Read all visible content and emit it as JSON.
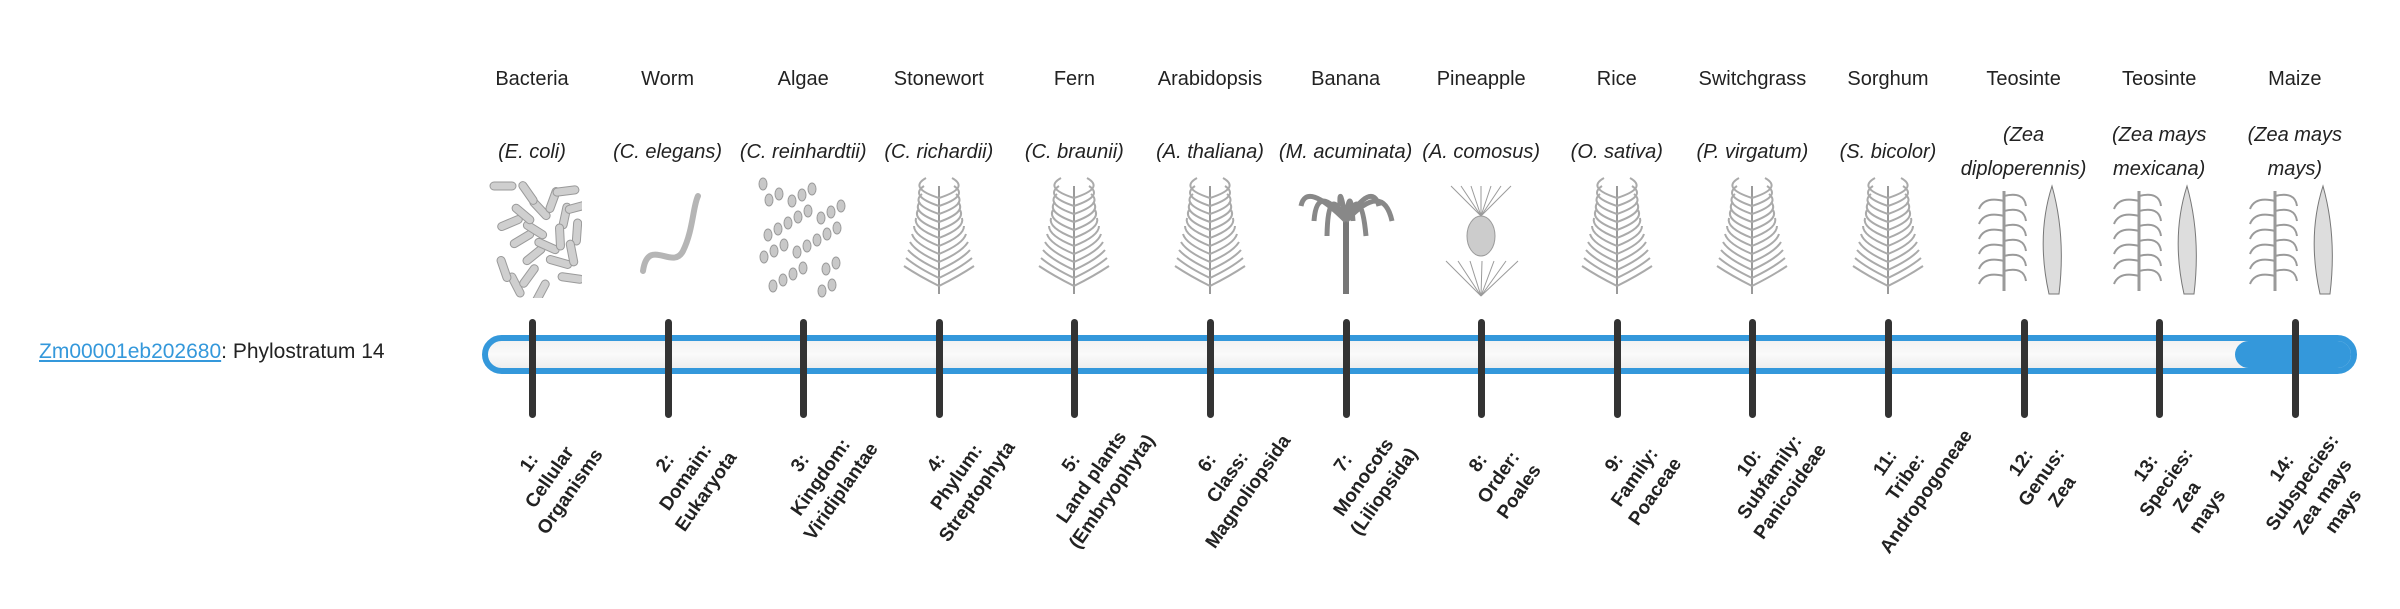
{
  "gene": {
    "id": "Zm00001eb202680",
    "suffix": ": Phylostratum 14"
  },
  "accent_color": "#3498db",
  "current_stratum": 14,
  "total_strata": 14,
  "columns": [
    {
      "common": "Bacteria",
      "scientific": "(E. coli)",
      "icon": "bacteria-icon",
      "stratum": [
        "1:",
        "Cellular",
        "Organisms"
      ]
    },
    {
      "common": "Worm",
      "scientific": "(C. elegans)",
      "icon": "worm-icon",
      "stratum": [
        "2:",
        "Domain:",
        "Eukaryota"
      ]
    },
    {
      "common": "Algae",
      "scientific": "(C. reinhardtii)",
      "icon": "algae-icon",
      "stratum": [
        "3:",
        "Kingdom:",
        "Viridiplantae"
      ]
    },
    {
      "common": "Stonewort",
      "scientific": "(C. richardii)",
      "icon": "stonewort-icon",
      "stratum": [
        "4:",
        "Phylum:",
        "Streptophyta"
      ]
    },
    {
      "common": "Fern",
      "scientific": "(C. braunii)",
      "icon": "fern-icon",
      "stratum": [
        "5:",
        "Land plants",
        "(Embryophyta)"
      ]
    },
    {
      "common": "Arabidopsis",
      "scientific": "(A. thaliana)",
      "icon": "arabidopsis-icon",
      "stratum": [
        "6:",
        "Class:",
        "Magnoliopsida"
      ]
    },
    {
      "common": "Banana",
      "scientific": "(M. acuminata)",
      "icon": "banana-icon",
      "stratum": [
        "7:",
        "Monocots",
        "(Liliopsida)"
      ]
    },
    {
      "common": "Pineapple",
      "scientific": "(A. comosus)",
      "icon": "pineapple-icon",
      "stratum": [
        "8:",
        "Order:",
        "Poales"
      ]
    },
    {
      "common": "Rice",
      "scientific": "(O. sativa)",
      "icon": "rice-icon",
      "stratum": [
        "9:",
        "Family:",
        "Poaceae"
      ]
    },
    {
      "common": "Switchgrass",
      "scientific": "(P. virgatum)",
      "icon": "switchgrass-icon",
      "stratum": [
        "10:",
        "Subfamily:",
        "Panicoideae"
      ]
    },
    {
      "common": "Sorghum",
      "scientific": "(S. bicolor)",
      "icon": "sorghum-icon",
      "stratum": [
        "11:",
        "Tribe:",
        "Andropogoneae"
      ]
    },
    {
      "common": "Teosinte",
      "scientific": "(Zea diploperennis)",
      "icon": "teosinte-icon",
      "stratum": [
        "12:",
        "Genus:",
        "Zea"
      ]
    },
    {
      "common": "Teosinte",
      "scientific": "(Zea mays mexicana)",
      "icon": "teosinte-mexicana-icon",
      "stratum": [
        "13:",
        "Species:",
        "Zea",
        "mays"
      ]
    },
    {
      "common": "Maize",
      "scientific": "(Zea mays mays)",
      "icon": "maize-icon",
      "stratum": [
        "14:",
        "Subspecies:",
        "Zea mays",
        "mays"
      ]
    }
  ]
}
